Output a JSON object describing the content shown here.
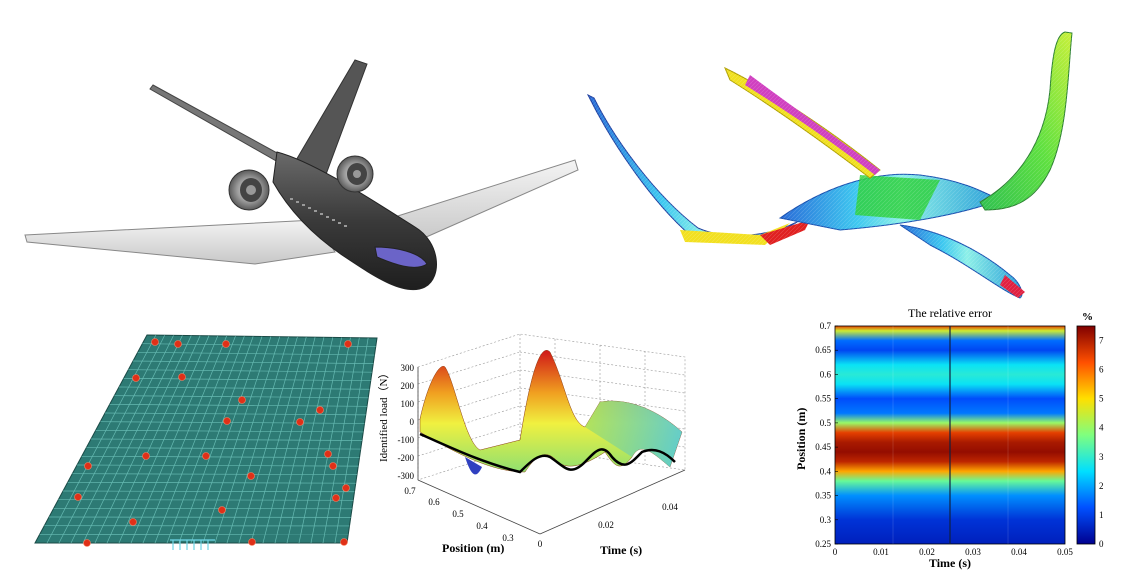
{
  "surface3d": {
    "zlabel": "Identified load（N）",
    "xlabel": "Position (m)",
    "ylabel": "Time (s)",
    "z_ticks": [
      "300",
      "200",
      "100",
      "0",
      "-100",
      "-200",
      "-300"
    ],
    "x_ticks": [
      "0.7",
      "0.6",
      "0.5",
      "0.4",
      "0.3"
    ],
    "y_ticks": [
      "0",
      "0.02",
      "0.04"
    ]
  },
  "heatmap": {
    "title": "The relative error",
    "colorbar_unit": "%",
    "colorbar_ticks": [
      "7",
      "6",
      "5",
      "4",
      "3",
      "2",
      "1",
      "0"
    ],
    "ylabel": "Position (m)",
    "xlabel": "Time (s)",
    "y_ticks": [
      "0.7",
      "0.65",
      "0.6",
      "0.55",
      "0.5",
      "0.45",
      "0.4",
      "0.35",
      "0.3",
      "0.25"
    ],
    "x_ticks": [
      "0",
      "0.01",
      "0.02",
      "0.03",
      "0.04",
      "0.05"
    ],
    "colormap": [
      "#00008f",
      "#0050ff",
      "#00dfff",
      "#7fff7f",
      "#ffdf00",
      "#ff5000",
      "#800000"
    ]
  },
  "chart_data": [
    {
      "type": "heatmap",
      "title": "The relative error",
      "xlabel": "Time (s)",
      "ylabel": "Position (m)",
      "xlim": [
        0,
        0.05
      ],
      "ylim": [
        0.25,
        0.7
      ],
      "colorbar": {
        "label": "%",
        "range": [
          0,
          7.5
        ]
      },
      "profile_position": [
        0.25,
        0.3,
        0.35,
        0.38,
        0.4,
        0.42,
        0.44,
        0.46,
        0.48,
        0.5,
        0.52,
        0.55,
        0.58,
        0.6,
        0.62,
        0.65,
        0.67,
        0.69,
        0.7
      ],
      "profile_error": [
        0.5,
        0.8,
        1.8,
        3.5,
        5.5,
        6.9,
        7.3,
        7.1,
        6.5,
        4.0,
        1.6,
        1.2,
        2.6,
        2.9,
        2.6,
        1.1,
        1.5,
        4.5,
        6.5
      ]
    },
    {
      "type": "surface",
      "title": "",
      "xlabel": "Position (m)",
      "ylabel": "Time (s)",
      "zlabel": "Identified load（N）",
      "xlim": [
        0.25,
        0.7
      ],
      "ylim": [
        0,
        0.05
      ],
      "zlim": [
        -300,
        300
      ]
    }
  ]
}
